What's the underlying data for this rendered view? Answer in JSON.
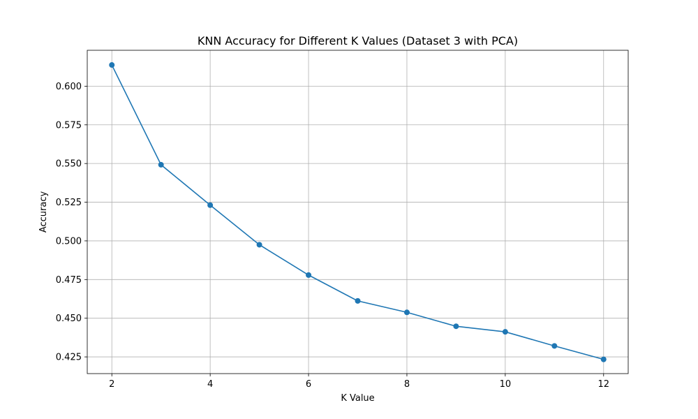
{
  "chart_data": {
    "type": "line",
    "title": "KNN Accuracy for Different K Values (Dataset 3 with PCA)",
    "xlabel": "K Value",
    "ylabel": "Accuracy",
    "xlim": [
      1.5,
      12.5
    ],
    "ylim": [
      0.4142,
      0.6232
    ],
    "xticks": [
      2,
      4,
      6,
      8,
      10,
      12
    ],
    "yticks": [
      0.425,
      0.45,
      0.475,
      0.5,
      0.525,
      0.55,
      0.575,
      0.6
    ],
    "ytick_labels": [
      "0.425",
      "0.450",
      "0.475",
      "0.500",
      "0.525",
      "0.550",
      "0.575",
      "0.600"
    ],
    "grid": true,
    "series": [
      {
        "color": "#1f77b4",
        "marker": "circle",
        "x": [
          2,
          3,
          4,
          5,
          6,
          7,
          8,
          9,
          10,
          11,
          12
        ],
        "values": [
          0.6137,
          0.5492,
          0.5231,
          0.4975,
          0.4779,
          0.4612,
          0.4538,
          0.4448,
          0.4412,
          0.4321,
          0.4234
        ]
      }
    ]
  }
}
